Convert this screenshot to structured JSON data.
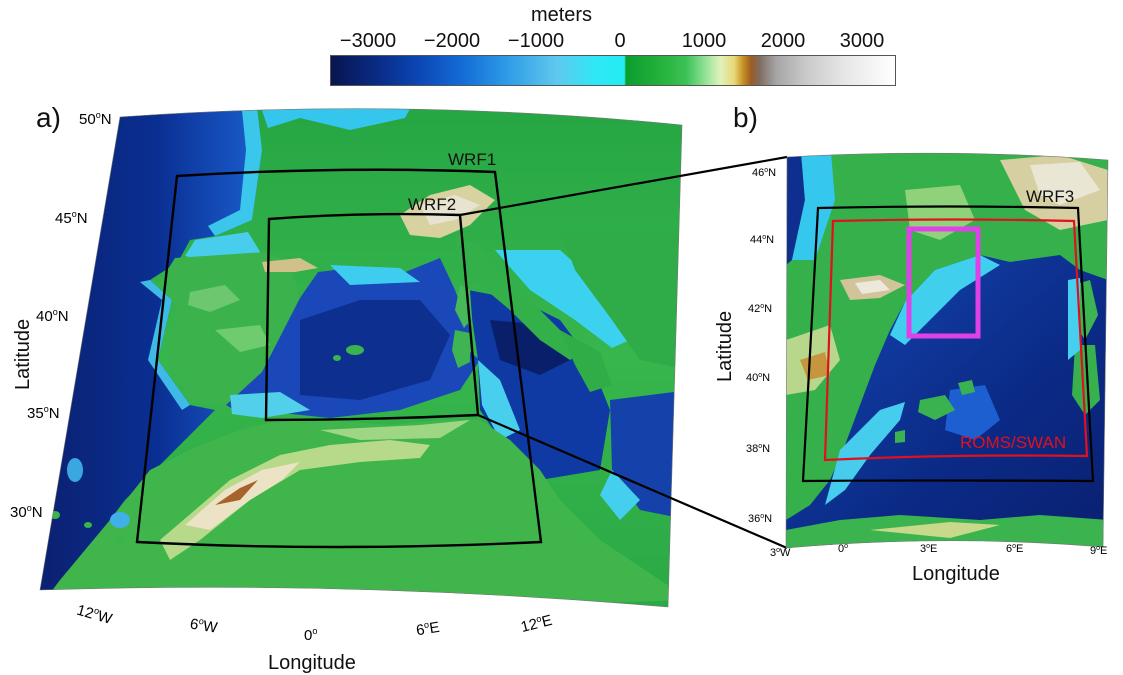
{
  "colorbar": {
    "title": "meters",
    "ticks": [
      "−3000",
      "−2000",
      "−1000",
      "0",
      "1000",
      "2000",
      "3000"
    ]
  },
  "panel_a": {
    "letter": "a)",
    "xlabel": "Longitude",
    "ylabel": "Latitude",
    "lat_labels": [
      {
        "deg": "50",
        "hem": "N"
      },
      {
        "deg": "45",
        "hem": "N"
      },
      {
        "deg": "40",
        "hem": "N"
      },
      {
        "deg": "35",
        "hem": "N"
      },
      {
        "deg": "30",
        "hem": "N"
      }
    ],
    "lon_labels": [
      {
        "deg": "12",
        "hem": "W"
      },
      {
        "deg": "6",
        "hem": "W"
      },
      {
        "deg": "0",
        "hem": ""
      },
      {
        "deg": "6",
        "hem": "E"
      },
      {
        "deg": "12",
        "hem": "E"
      }
    ],
    "domains": [
      {
        "name": "WRF1",
        "color": "#000000"
      },
      {
        "name": "WRF2",
        "color": "#000000"
      }
    ]
  },
  "panel_b": {
    "letter": "b)",
    "xlabel": "Longitude",
    "ylabel": "Latitude",
    "lat_labels": [
      {
        "deg": "46",
        "hem": "N"
      },
      {
        "deg": "44",
        "hem": "N"
      },
      {
        "deg": "42",
        "hem": "N"
      },
      {
        "deg": "40",
        "hem": "N"
      },
      {
        "deg": "38",
        "hem": "N"
      },
      {
        "deg": "36",
        "hem": "N"
      }
    ],
    "lon_labels": [
      {
        "deg": "3",
        "hem": "W"
      },
      {
        "deg": "0",
        "hem": ""
      },
      {
        "deg": "3",
        "hem": "E"
      },
      {
        "deg": "6",
        "hem": "E"
      },
      {
        "deg": "9",
        "hem": "E"
      }
    ],
    "domains": [
      {
        "name": "WRF3",
        "color": "#000000"
      },
      {
        "name": "ROMS/SWAN",
        "color": "#e0101e"
      }
    ],
    "highlight_color": "#e040e8"
  }
}
